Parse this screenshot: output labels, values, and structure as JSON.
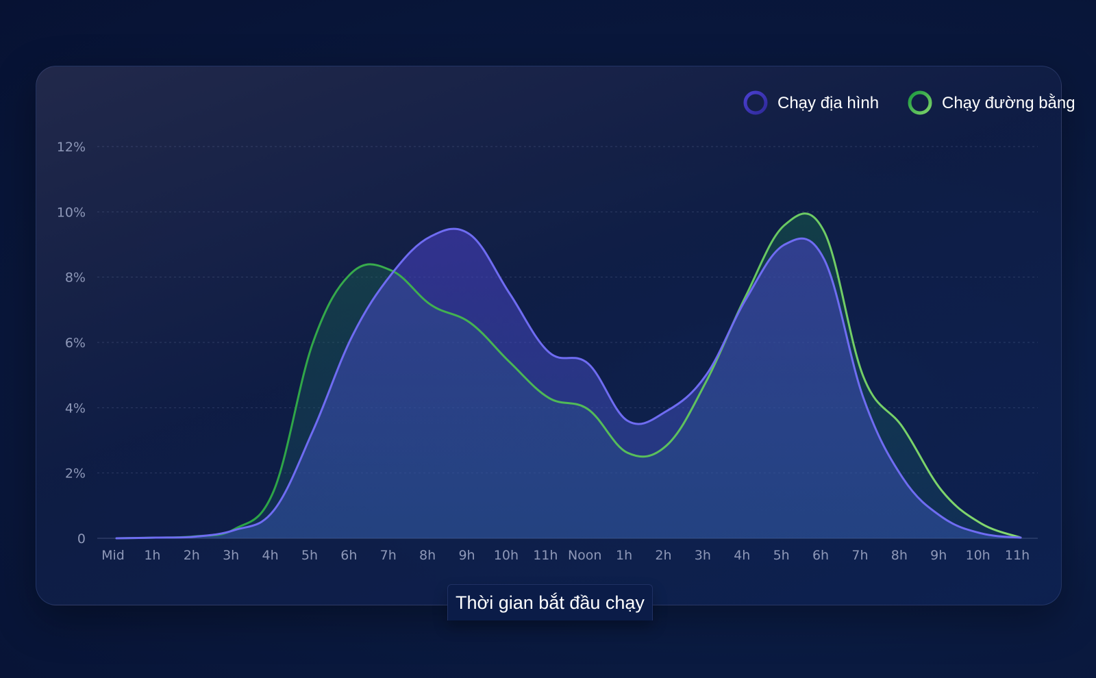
{
  "chart_data": {
    "type": "area",
    "xlabel": "Thời gian bắt đầu chạy",
    "ylabel": "",
    "ylim": [
      0,
      12
    ],
    "y_ticks": [
      {
        "value": 0,
        "label": "0"
      },
      {
        "value": 2,
        "label": "2%"
      },
      {
        "value": 4,
        "label": "4%"
      },
      {
        "value": 6,
        "label": "6%"
      },
      {
        "value": 8,
        "label": "8%"
      },
      {
        "value": 10,
        "label": "10%"
      },
      {
        "value": 12,
        "label": "12%"
      }
    ],
    "categories": [
      "Mid",
      "1h",
      "2h",
      "3h",
      "4h",
      "5h",
      "6h",
      "7h",
      "8h",
      "9h",
      "10h",
      "11h",
      "Noon",
      "1h",
      "2h",
      "3h",
      "4h",
      "5h",
      "6h",
      "7h",
      "8h",
      "9h",
      "10h",
      "11h"
    ],
    "grid": true,
    "legend_position": "top-right",
    "series": [
      {
        "name": "Chạy địa hình",
        "color": "#6f6cf2",
        "fill": "#5a52d8",
        "values": [
          0.0,
          0.02,
          0.05,
          0.25,
          0.85,
          3.3,
          6.2,
          8.1,
          9.25,
          9.3,
          7.5,
          5.7,
          5.35,
          3.6,
          3.9,
          5.0,
          7.3,
          9.0,
          8.55,
          4.3,
          1.85,
          0.65,
          0.15,
          0.02
        ]
      },
      {
        "name": "Chạy đường bằng",
        "color": "#1fa84a",
        "color_end": "#7ed36a",
        "fill": "#1d6b45",
        "values": [
          0.0,
          0.02,
          0.06,
          0.28,
          1.45,
          6.0,
          8.15,
          8.2,
          7.15,
          6.6,
          5.4,
          4.3,
          3.95,
          2.62,
          2.85,
          4.8,
          7.4,
          9.6,
          9.4,
          4.95,
          3.4,
          1.45,
          0.45,
          0.02
        ]
      }
    ]
  }
}
